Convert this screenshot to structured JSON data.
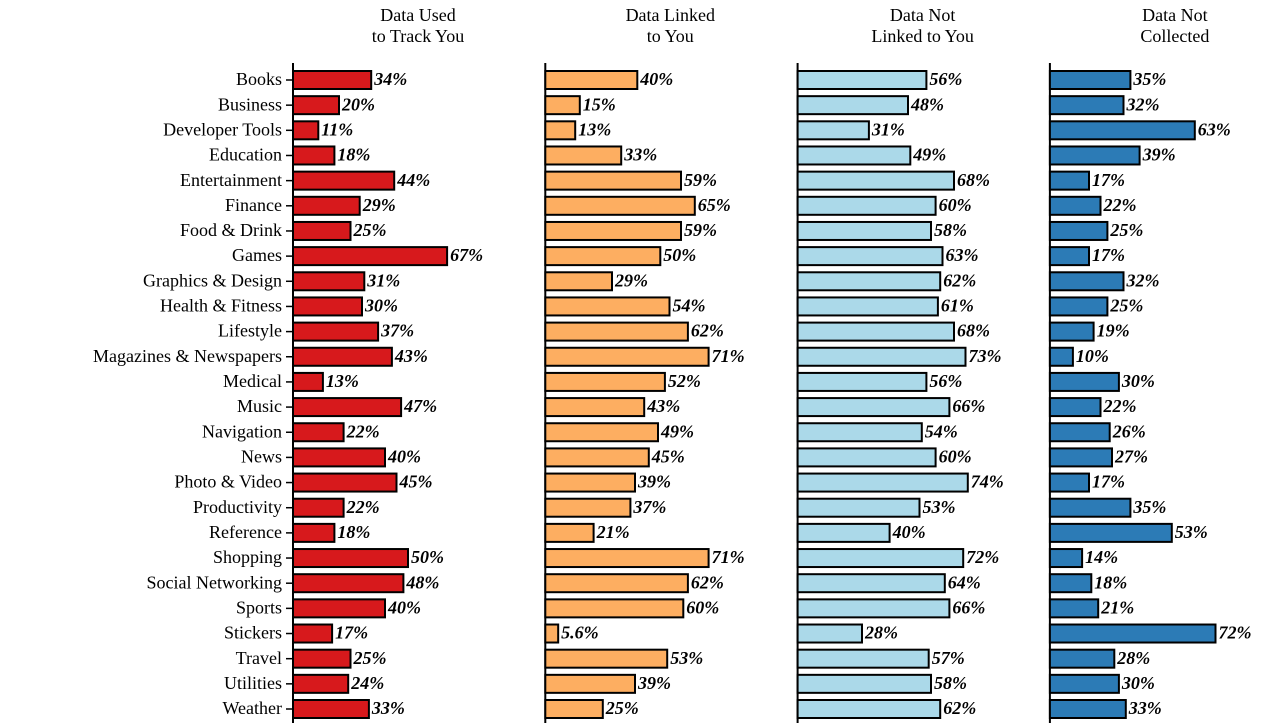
{
  "chart_data": {
    "type": "bar",
    "orientation": "horizontal",
    "categories": [
      "Books",
      "Business",
      "Developer Tools",
      "Education",
      "Entertainment",
      "Finance",
      "Food & Drink",
      "Games",
      "Graphics & Design",
      "Health & Fitness",
      "Lifestyle",
      "Magazines & Newspapers",
      "Medical",
      "Music",
      "Navigation",
      "News",
      "Photo & Video",
      "Productivity",
      "Reference",
      "Shopping",
      "Social Networking",
      "Sports",
      "Stickers",
      "Travel",
      "Utilities",
      "Weather"
    ],
    "xlim": [
      0,
      100
    ],
    "series": [
      {
        "name": "Data Used\nto Track You",
        "color": "#d7191c",
        "values": [
          34,
          20,
          11,
          18,
          44,
          29,
          25,
          67,
          31,
          30,
          37,
          43,
          13,
          47,
          22,
          40,
          45,
          22,
          18,
          50,
          48,
          40,
          17,
          25,
          24,
          33
        ],
        "value_labels": [
          "34%",
          "20%",
          "11%",
          "18%",
          "44%",
          "29%",
          "25%",
          "67%",
          "31%",
          "30%",
          "37%",
          "43%",
          "13%",
          "47%",
          "22%",
          "40%",
          "45%",
          "22%",
          "18%",
          "50%",
          "48%",
          "40%",
          "17%",
          "25%",
          "24%",
          "33%"
        ]
      },
      {
        "name": "Data Linked\nto You",
        "color": "#fdae61",
        "values": [
          40,
          15,
          13,
          33,
          59,
          65,
          59,
          50,
          29,
          54,
          62,
          71,
          52,
          43,
          49,
          45,
          39,
          37,
          21,
          71,
          62,
          60,
          5.6,
          53,
          39,
          25
        ],
        "value_labels": [
          "40%",
          "15%",
          "13%",
          "33%",
          "59%",
          "65%",
          "59%",
          "50%",
          "29%",
          "54%",
          "62%",
          "71%",
          "52%",
          "43%",
          "49%",
          "45%",
          "39%",
          "37%",
          "21%",
          "71%",
          "62%",
          "60%",
          "5.6%",
          "53%",
          "39%",
          "25%"
        ]
      },
      {
        "name": "Data Not\nLinked to You",
        "color": "#abd9e9",
        "values": [
          56,
          48,
          31,
          49,
          68,
          60,
          58,
          63,
          62,
          61,
          68,
          73,
          56,
          66,
          54,
          60,
          74,
          53,
          40,
          72,
          64,
          66,
          28,
          57,
          58,
          62
        ],
        "value_labels": [
          "56%",
          "48%",
          "31%",
          "49%",
          "68%",
          "60%",
          "58%",
          "63%",
          "62%",
          "61%",
          "68%",
          "73%",
          "56%",
          "66%",
          "54%",
          "60%",
          "74%",
          "53%",
          "40%",
          "72%",
          "64%",
          "66%",
          "28%",
          "57%",
          "58%",
          "62%"
        ]
      },
      {
        "name": "Data Not\nCollected",
        "color": "#2c7bb6",
        "values": [
          35,
          32,
          63,
          39,
          17,
          22,
          25,
          17,
          32,
          25,
          19,
          10,
          30,
          22,
          26,
          27,
          17,
          35,
          53,
          14,
          18,
          21,
          72,
          28,
          30,
          33
        ],
        "value_labels": [
          "35%",
          "32%",
          "63%",
          "39%",
          "17%",
          "22%",
          "25%",
          "17%",
          "32%",
          "25%",
          "19%",
          "10%",
          "30%",
          "22%",
          "26%",
          "27%",
          "17%",
          "35%",
          "53%",
          "14%",
          "18%",
          "21%",
          "72%",
          "28%",
          "30%",
          "33%"
        ]
      }
    ]
  }
}
